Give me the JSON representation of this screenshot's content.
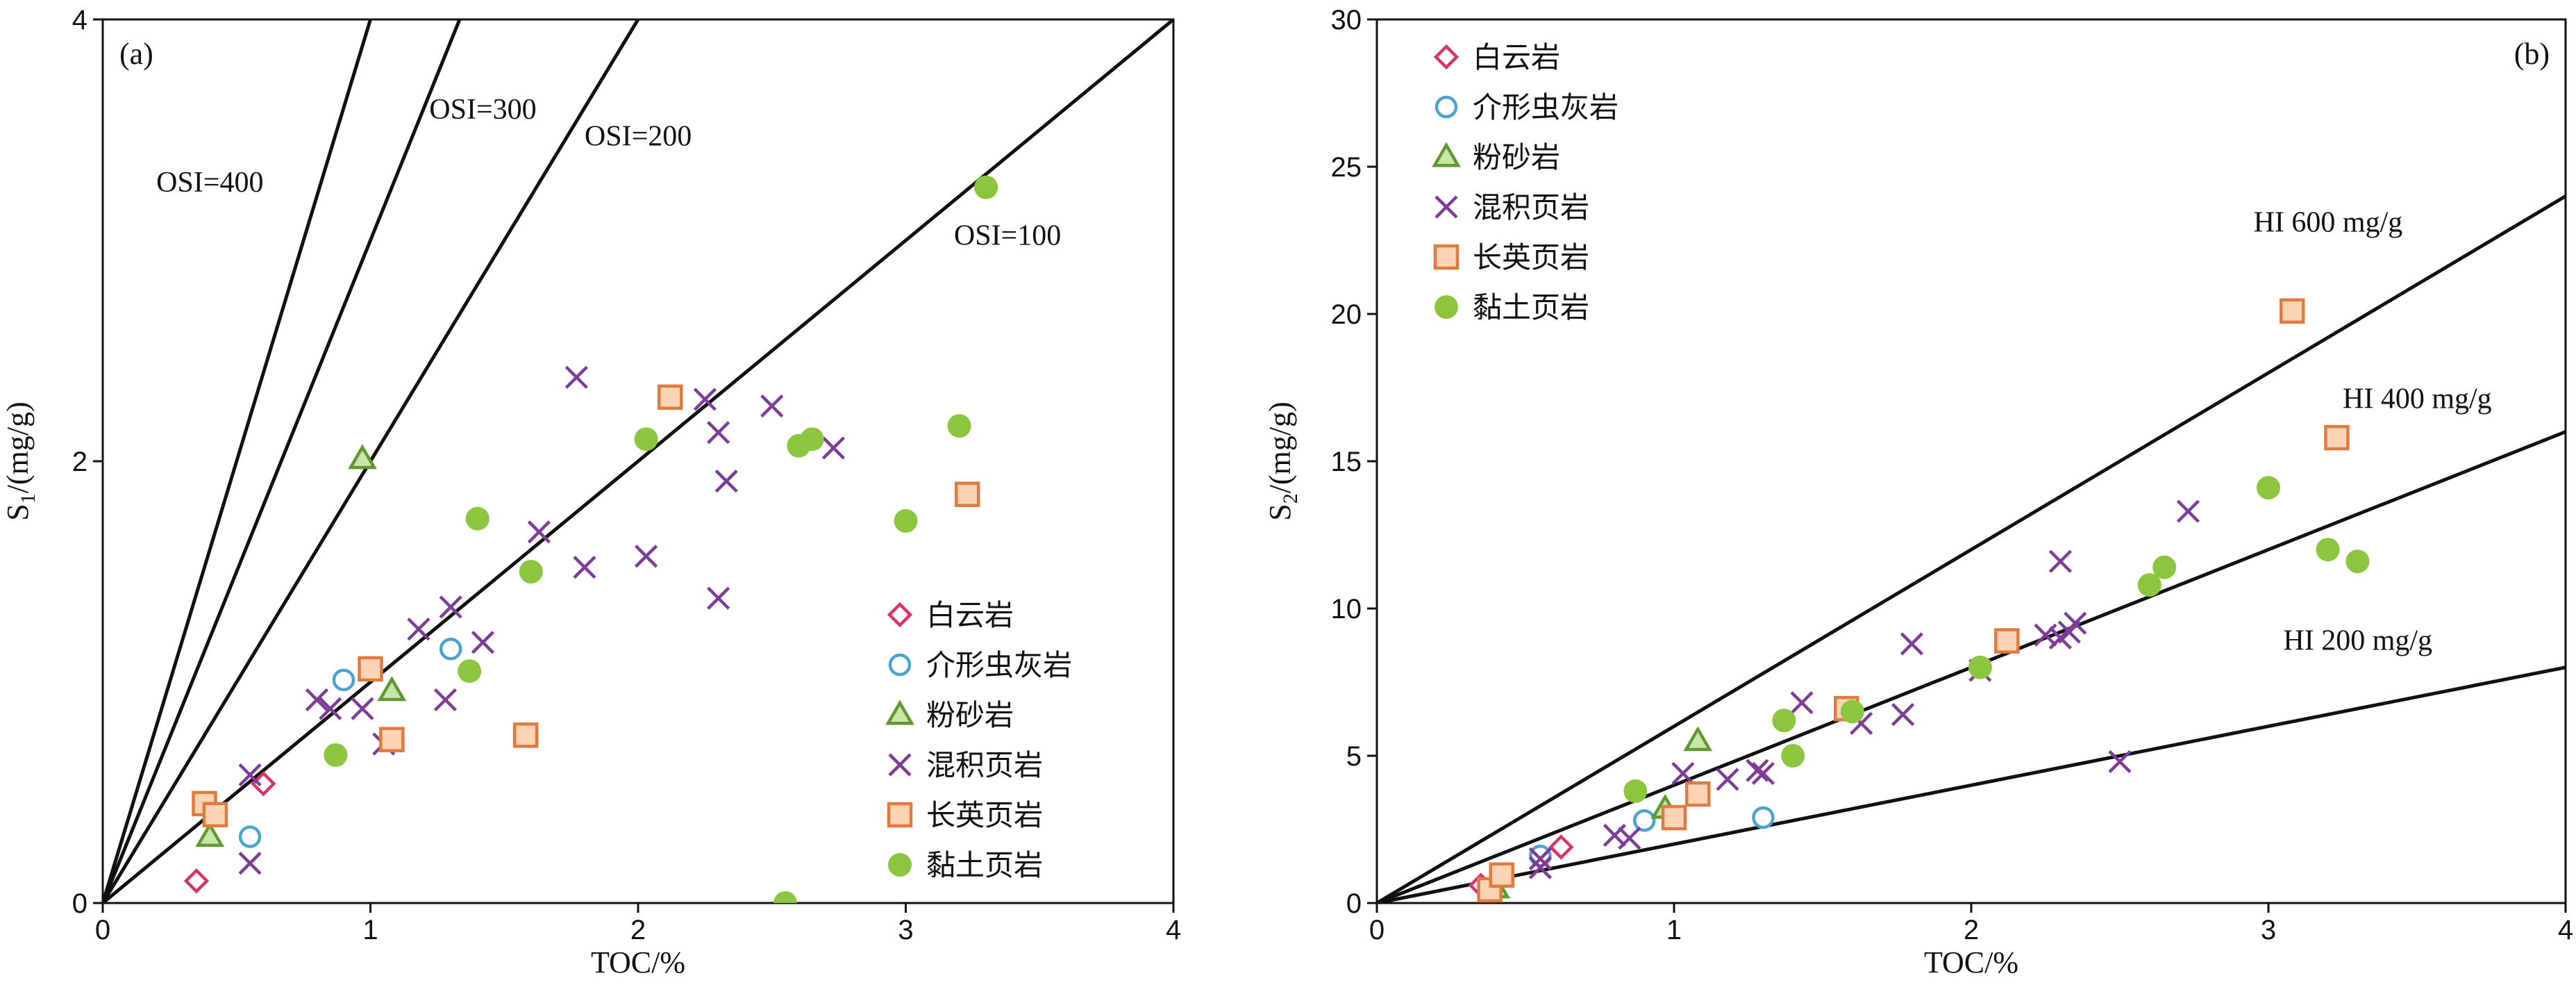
{
  "legend_labels": [
    "白云岩",
    "介形虫灰岩",
    "粉砂岩",
    "混积页岩",
    "长英页岩",
    "黏土页岩"
  ],
  "styles": {
    "白云岩": {
      "marker": "diamond",
      "color": "#d6336c"
    },
    "介形虫灰岩": {
      "marker": "circle",
      "color": "#4aa3d0"
    },
    "粉砂岩": {
      "marker": "triangle",
      "color": "#5e9a2f"
    },
    "混积页岩": {
      "marker": "x",
      "color": "#7d3c98"
    },
    "长英页岩": {
      "marker": "square",
      "color": "#e07a3f"
    },
    "黏土页岩": {
      "marker": "dot",
      "color": "#8cc63f"
    }
  },
  "chart_data": [
    {
      "type": "scatter",
      "panel_label": "(a)",
      "xlabel": "TOC/%",
      "ylabel_main": "S",
      "ylabel_sub": "1",
      "ylabel_rest": "/(mg/g)",
      "xlim": [
        0,
        4
      ],
      "ylim": [
        0,
        4
      ],
      "xticks": [
        0,
        1,
        2,
        3,
        4
      ],
      "yticks": [
        0,
        2,
        4
      ],
      "reference_lines": [
        {
          "label": "OSI=400",
          "slope": 4,
          "label_x": 0.2,
          "label_y": 3.22
        },
        {
          "label": "OSI=300",
          "slope": 3,
          "label_x": 1.22,
          "label_y": 3.55
        },
        {
          "label": "OSI=200",
          "slope": 2,
          "label_x": 1.8,
          "label_y": 3.43
        },
        {
          "label": "OSI=100",
          "slope": 1,
          "label_x": 3.18,
          "label_y": 2.98
        }
      ],
      "legend_position": "bottom-right",
      "series": [
        {
          "name": "白云岩",
          "points": [
            [
              0.35,
              0.1
            ],
            [
              0.6,
              0.54
            ]
          ]
        },
        {
          "name": "介形虫灰岩",
          "points": [
            [
              0.55,
              0.3
            ],
            [
              0.9,
              1.01
            ],
            [
              1.3,
              1.15
            ]
          ]
        },
        {
          "name": "粉砂岩",
          "points": [
            [
              0.4,
              0.3
            ],
            [
              0.97,
              2.01
            ],
            [
              1.08,
              0.96
            ]
          ]
        },
        {
          "name": "混积页岩",
          "points": [
            [
              0.55,
              0.58
            ],
            [
              0.55,
              0.18
            ],
            [
              0.8,
              0.92
            ],
            [
              0.85,
              0.88
            ],
            [
              0.97,
              0.88
            ],
            [
              1.05,
              0.72
            ],
            [
              1.18,
              1.24
            ],
            [
              1.28,
              0.92
            ],
            [
              1.3,
              1.34
            ],
            [
              1.42,
              1.18
            ],
            [
              1.63,
              1.68
            ],
            [
              1.77,
              2.38
            ],
            [
              1.8,
              1.52
            ],
            [
              2.03,
              1.57
            ],
            [
              2.25,
              2.28
            ],
            [
              2.3,
              2.13
            ],
            [
              2.3,
              1.38
            ],
            [
              2.33,
              1.91
            ],
            [
              2.5,
              2.25
            ],
            [
              2.73,
              2.06
            ]
          ]
        },
        {
          "name": "长英页岩",
          "points": [
            [
              0.38,
              0.45
            ],
            [
              0.42,
              0.4
            ],
            [
              1.0,
              1.06
            ],
            [
              1.08,
              0.74
            ],
            [
              1.58,
              0.76
            ],
            [
              2.12,
              2.29
            ],
            [
              3.23,
              1.85
            ]
          ]
        },
        {
          "name": "黏土页岩",
          "points": [
            [
              0.87,
              0.67
            ],
            [
              1.37,
              1.05
            ],
            [
              1.4,
              1.74
            ],
            [
              1.6,
              1.5
            ],
            [
              2.03,
              2.1
            ],
            [
              2.6,
              2.07
            ],
            [
              2.65,
              2.1
            ],
            [
              3.0,
              1.73
            ],
            [
              3.2,
              2.16
            ],
            [
              3.3,
              3.24
            ],
            [
              2.55,
              0.0
            ]
          ]
        }
      ]
    },
    {
      "type": "scatter",
      "panel_label": "(b)",
      "xlabel": "TOC/%",
      "ylabel_main": "S",
      "ylabel_sub": "2",
      "ylabel_rest": "/(mg/g)",
      "xlim": [
        0,
        4
      ],
      "ylim": [
        0,
        30
      ],
      "xticks": [
        0,
        1,
        2,
        3,
        4
      ],
      "yticks": [
        0,
        5,
        10,
        15,
        20,
        25,
        30
      ],
      "reference_lines": [
        {
          "label": "HI 600 mg/g",
          "slope": 6,
          "label_x": 2.95,
          "label_y": 22.8
        },
        {
          "label": "HI 400 mg/g",
          "slope": 4,
          "label_x": 3.25,
          "label_y": 16.8
        },
        {
          "label": "HI 200 mg/g",
          "slope": 2,
          "label_x": 3.05,
          "label_y": 8.6
        }
      ],
      "legend_position": "top-left",
      "series": [
        {
          "name": "白云岩",
          "points": [
            [
              0.35,
              0.6
            ],
            [
              0.38,
              0.45
            ],
            [
              0.62,
              1.9
            ]
          ]
        },
        {
          "name": "介形虫灰岩",
          "points": [
            [
              0.55,
              1.6
            ],
            [
              0.9,
              2.8
            ],
            [
              1.3,
              2.9
            ]
          ]
        },
        {
          "name": "粉砂岩",
          "points": [
            [
              0.4,
              0.5
            ],
            [
              0.97,
              3.2
            ],
            [
              1.08,
              5.5
            ]
          ]
        },
        {
          "name": "混积页岩",
          "points": [
            [
              0.55,
              1.2
            ],
            [
              0.55,
              1.5
            ],
            [
              0.8,
              2.3
            ],
            [
              0.85,
              2.2
            ],
            [
              1.03,
              4.4
            ],
            [
              1.18,
              4.2
            ],
            [
              1.28,
              4.5
            ],
            [
              1.3,
              4.4
            ],
            [
              1.43,
              6.8
            ],
            [
              1.63,
              6.1
            ],
            [
              1.77,
              6.4
            ],
            [
              1.8,
              8.8
            ],
            [
              2.03,
              7.9
            ],
            [
              2.25,
              9.1
            ],
            [
              2.3,
              9.0
            ],
            [
              2.3,
              11.6
            ],
            [
              2.33,
              9.2
            ],
            [
              2.35,
              9.5
            ],
            [
              2.5,
              4.8
            ],
            [
              2.73,
              13.3
            ]
          ]
        },
        {
          "name": "长英页岩",
          "points": [
            [
              0.38,
              0.45
            ],
            [
              0.42,
              0.95
            ],
            [
              1.0,
              2.9
            ],
            [
              1.08,
              3.7
            ],
            [
              1.58,
              6.6
            ],
            [
              2.12,
              8.9
            ],
            [
              3.08,
              20.1
            ],
            [
              3.23,
              15.8
            ]
          ]
        },
        {
          "name": "黏土页岩",
          "points": [
            [
              0.87,
              3.8
            ],
            [
              1.37,
              6.2
            ],
            [
              1.4,
              5.0
            ],
            [
              1.6,
              6.5
            ],
            [
              2.03,
              8.0
            ],
            [
              2.6,
              10.8
            ],
            [
              2.65,
              11.4
            ],
            [
              3.0,
              14.1
            ],
            [
              3.2,
              12.0
            ],
            [
              3.3,
              11.6
            ]
          ]
        }
      ]
    }
  ]
}
